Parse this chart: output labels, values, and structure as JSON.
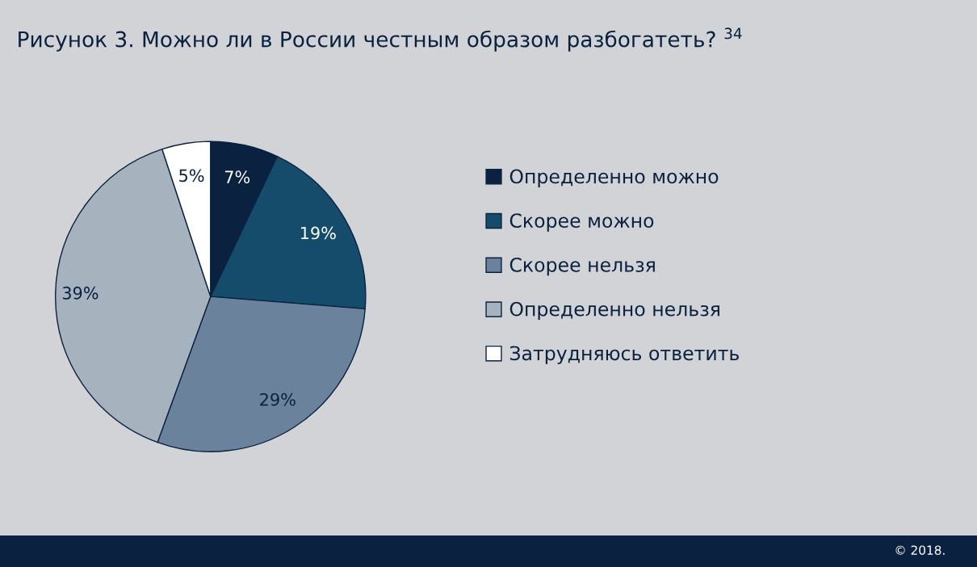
{
  "chart_data": {
    "type": "pie",
    "title": "Рисунок 3. Можно ли в России честным образом разбогатеть? $^{34}$",
    "categories": [
      "Определенно можно",
      "Скорее можно",
      "Скорее нельзя",
      "Определенно нельзя",
      "Затрудняюсь ответить"
    ],
    "values": [
      7,
      19,
      29,
      39,
      5
    ],
    "value_labels": [
      "7%",
      "19%",
      "29%",
      "39%",
      "5%"
    ],
    "colors": [
      "#0a2240",
      "#154b6b",
      "#6b829c",
      "#a7b2bf",
      "#ffffff"
    ],
    "legend": "right",
    "annotations": [
      "© 2018."
    ]
  }
}
